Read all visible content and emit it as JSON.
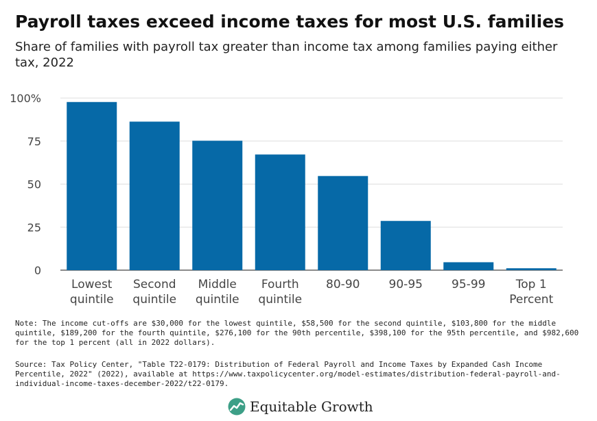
{
  "title": "Payroll taxes exceed income taxes for most U.S. families",
  "subtitle": "Share of families with payroll tax greater than income tax among families paying either tax, 2022",
  "chart_data": {
    "type": "bar",
    "categories": [
      [
        "Lowest",
        "quintile"
      ],
      [
        "Second",
        "quintile"
      ],
      [
        "Middle",
        "quintile"
      ],
      [
        "Fourth",
        "quintile"
      ],
      [
        "80-90"
      ],
      [
        "90-95"
      ],
      [
        "95-99"
      ],
      [
        "Top 1",
        "Percent"
      ]
    ],
    "values": [
      97.7,
      86.3,
      75.2,
      67.2,
      54.7,
      28.6,
      4.6,
      1.1
    ],
    "ylim": [
      0,
      100
    ],
    "yticks": [
      0,
      25,
      50,
      75,
      100
    ],
    "ytick_labels": [
      "0",
      "25",
      "50",
      "75",
      "100%"
    ],
    "bar_color": "#0669a7",
    "grid": true
  },
  "note": "Note: The income cut-offs are $30,000 for the lowest quintile, $58,500 for the second quintile, $103,800 for the middle quintile, $189,200 for the fourth quintile, $276,100 for the 90th percentile, $398,100 for the 95th percentile, and $982,600 for the top 1 percent (all in 2022 dollars).",
  "source": "Source: Tax Policy Center, \"Table T22-0179: Distribution of Federal Payroll and Income Taxes by Expanded Cash Income Percentile, 2022\" (2022), available at https://www.taxpolicycenter.org/model-estimates/distribution-federal-payroll-and-individual-income-taxes-december-2022/t22-0179.",
  "logo": {
    "text": "Equitable Growth",
    "circle_color": "#3d9f87"
  }
}
